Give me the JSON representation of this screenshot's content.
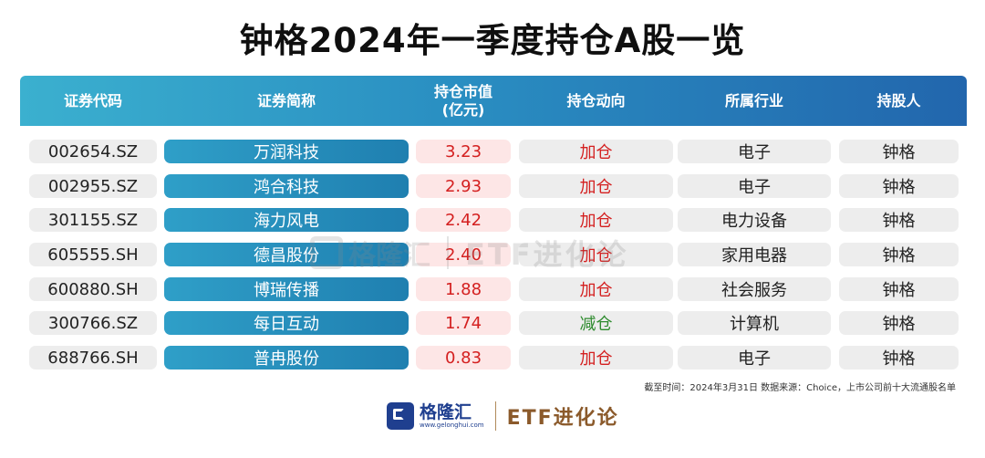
{
  "title": "钟格2024年一季度持仓A股一览",
  "columns": {
    "code": "证券代码",
    "name": "证券简称",
    "value_line1": "持仓市值",
    "value_line2": "(亿元)",
    "action": "持仓动向",
    "industry": "所属行业",
    "holder": "持股人"
  },
  "rows": [
    {
      "code": "002654.SZ",
      "name": "万润科技",
      "value": "3.23",
      "action": "加仓",
      "industry": "电子",
      "holder": "钟格"
    },
    {
      "code": "002955.SZ",
      "name": "鸿合科技",
      "value": "2.93",
      "action": "加仓",
      "industry": "电子",
      "holder": "钟格"
    },
    {
      "code": "301155.SZ",
      "name": "海力风电",
      "value": "2.42",
      "action": "加仓",
      "industry": "电力设备",
      "holder": "钟格"
    },
    {
      "code": "605555.SH",
      "name": "德昌股份",
      "value": "2.40",
      "action": "加仓",
      "industry": "家用电器",
      "holder": "钟格"
    },
    {
      "code": "600880.SH",
      "name": "博瑞传播",
      "value": "1.88",
      "action": "加仓",
      "industry": "社会服务",
      "holder": "钟格"
    },
    {
      "code": "300766.SZ",
      "name": "每日互动",
      "value": "1.74",
      "action": "减仓",
      "industry": "计算机",
      "holder": "钟格"
    },
    {
      "code": "688766.SH",
      "name": "普冉股份",
      "value": "0.83",
      "action": "加仓",
      "industry": "电子",
      "holder": "钟格"
    }
  ],
  "note": "截至时间：2024年3月31日 数据来源：Choice，上市公司前十大流通股名单",
  "watermark": {
    "brand": "格隆汇",
    "etf": "ETF进化论"
  },
  "footer": {
    "brand": "格隆汇",
    "url": "www.gelonghui.com",
    "etf": "ETF进化论"
  },
  "colors": {
    "header_start": "#3bb0cf",
    "header_end": "#2266ad",
    "add": "#d42020",
    "cut": "#2e8b2e",
    "brand": "#1f3f8f",
    "etf": "#8b5a2b"
  }
}
